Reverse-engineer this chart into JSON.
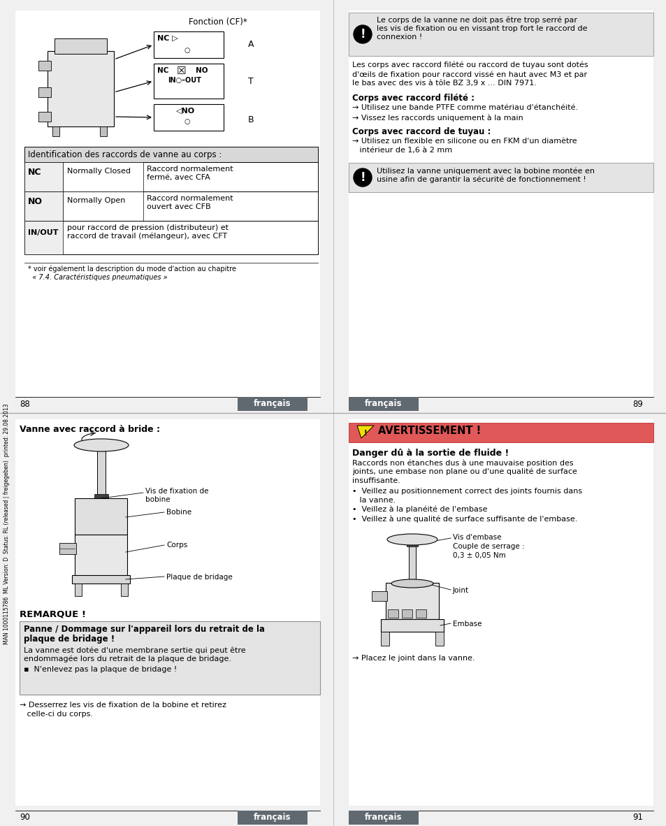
{
  "bg_color": "#ffffff",
  "footer_color": "#606870",
  "notice_bg": "#e8e8e8",
  "warning_red": "#e8544a",
  "remarque_bg": "#e8e8e8",
  "page1_number": "88",
  "page2_number": "89",
  "page3_number": "90",
  "page4_number": "91",
  "footer_label": "français",
  "top_left_title": "Fonction (CF)*",
  "cf_A": "A",
  "cf_T": "T",
  "cf_B": "B",
  "table_header": "Identification des raccords de vanne au corps :",
  "row1_col1": "NC",
  "row1_col2": "Normally Closed",
  "row1_col3": "Raccord normalement\nfermé, avec CFA",
  "row2_col1": "NO",
  "row2_col2": "Normally Open",
  "row2_col3": "Raccord normalement\nouvert avec CFB",
  "row3_col1": "IN/OUT",
  "row3_col2": "pour raccord de pression (distributeur) et\nraccord de travail (mélangeur), avec CFT",
  "footnote_line1": "* voir également la description du mode d'action au chapitre",
  "footnote_line2": "  « 7.4. Caractéristiques pneumatiques »",
  "notice1_text": "Le corps de la vanne ne doit pas être trop serré par\nles vis de fixation ou en vissant trop fort le raccord de\nconnexion !",
  "body_text1_line1": "Les corps avec raccord filété ou raccord de tuyau sont dotés",
  "body_text1_line2": "d'œils de fixation pour raccord vissé en haut avec M3 et par",
  "body_text1_line3": "le bas avec des vis à tôle BZ 3,9 x ... DIN 7971.",
  "section1_title": "Corps avec raccord filété :",
  "bullet1a": "→ Utilisez une bande PTFE comme matériau d'étanchéité.",
  "bullet1b": "→ Vissez les raccords uniquement à la main",
  "section2_title": "Corps avec raccord de tuyau :",
  "bullet2a_line1": "→ Utilisez un flexible en silicone ou en FKM d'un diamètre",
  "bullet2a_line2": "   intérieur de 1,6 à 2 mm",
  "notice2_text": "Utilisez la vanne uniquement avec la bobine montée en\nusine afin de garantir la sécurité de fonctionnement !",
  "bottom_left_title": "Vanne avec raccord à bride :",
  "label_vis": "Vis de fixation de\nbobine",
  "label_bobine": "Bobine",
  "label_corps": "Corps",
  "label_plaque": "Plaque de bridage",
  "remarque_title": "REMARQUE !",
  "remarque_box_title_line1": "Panne / Dommage sur l'appareil lors du retrait de la",
  "remarque_box_title_line2": "plaque de bridage !",
  "remarque_box_body_line1": "La vanne est dotée d'une membrane sertie qui peut être",
  "remarque_box_body_line2": "endommagée lors du retrait de la plaque de bridage.",
  "remarque_bullet": "▪  N'enlevez pas la plaque de bridage !",
  "arrow_text_line1": "→ Desserrez les vis de fixation de la bobine et retirez",
  "arrow_text_line2": "   celle-ci du corps.",
  "warning_title": "AVERTISSEMENT !",
  "warning_subtitle": "Danger dû à la sortie de fluide !",
  "warning_body_line1": "Raccords non étanches dus à une mauvaise position des",
  "warning_body_line2": "joints, une embase non plane ou d'une qualité de surface",
  "warning_body_line3": "insuffisante.",
  "warning_bullet1_line1": "•  Veillez au positionnement correct des joints fournis dans",
  "warning_bullet1_line2": "   la vanne.",
  "warning_bullet2": "•  Veillez à la planéité de l'embase",
  "warning_bullet3": "•  Veillez à une qualité de surface suffisante de l'embase.",
  "label_vis_embase": "Vis d'embase",
  "label_couple": "Couple de serrage :",
  "label_couple2": "0,3 ± 0,05 Nm",
  "label_joint": "Joint",
  "label_embase": "Embase",
  "arrow_text4": "→ Placez le joint dans la vanne.",
  "sidebar_text": "MAN 1000115786  ML Version: D  Status: RL (released | freigegeben)  printed: 29.08.2013"
}
